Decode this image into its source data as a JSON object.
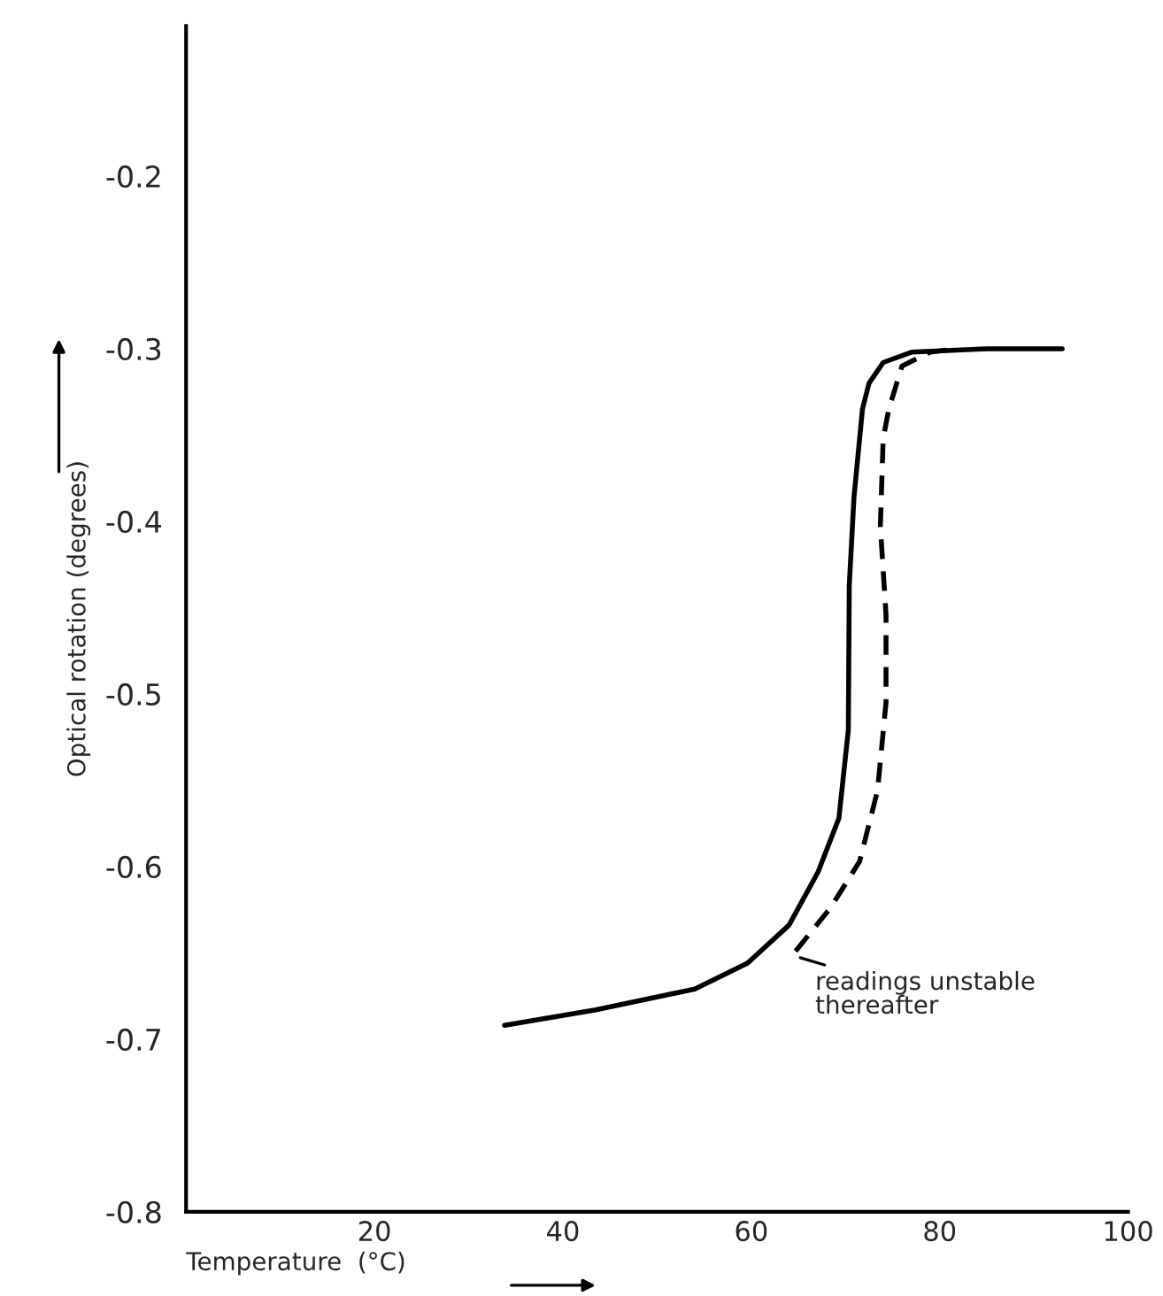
{
  "chart_data": {
    "type": "line",
    "xlabel": "Temperature  (°C)",
    "ylabel": "Optical rotation (degrees)",
    "series": [
      {
        "color": "#000000",
        "line_style": "solid",
        "x": [
          33.8,
          43.5,
          54.0,
          59.6,
          64.0,
          67.1,
          69.3,
          70.3,
          70.4,
          70.9,
          71.8,
          72.5,
          74.0,
          77.0,
          85.0,
          93.0
        ],
        "values": [
          -0.692,
          -0.683,
          -0.671,
          -0.656,
          -0.634,
          -0.603,
          -0.572,
          -0.521,
          -0.437,
          -0.386,
          -0.335,
          -0.32,
          -0.308,
          -0.302,
          -0.3,
          -0.3
        ]
      },
      {
        "color": "#000000",
        "line_style": "dashed",
        "x": [
          64.7,
          68.4,
          71.5,
          73.4,
          74.3,
          74.3,
          73.7,
          74.0,
          74.6,
          76.0,
          79.0,
          82.0
        ],
        "values": [
          -0.649,
          -0.624,
          -0.597,
          -0.556,
          -0.505,
          -0.454,
          -0.403,
          -0.352,
          -0.335,
          -0.31,
          -0.302,
          -0.3
        ]
      }
    ],
    "annotations": [
      {
        "text": "readings unstable\nthereafter",
        "x": 64.7,
        "y": -0.652
      }
    ],
    "xlim": [
      0,
      100
    ],
    "ylim": [
      -0.8,
      -0.113
    ],
    "xticks": [
      20,
      40,
      60,
      80,
      100
    ],
    "yticks": [
      -0.8,
      -0.7,
      -0.6,
      -0.5,
      -0.4,
      -0.3,
      -0.2
    ],
    "grid": false,
    "legend": false
  }
}
